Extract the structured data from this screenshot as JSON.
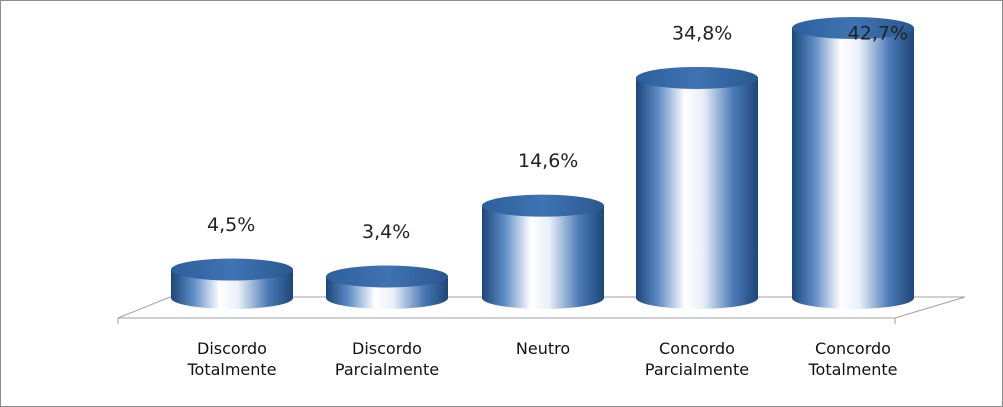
{
  "chart_data": {
    "type": "bar3d",
    "categories": [
      "Discordo Totalmente",
      "Discordo Parcialmente",
      "Neutro",
      "Concordo Parcialmente",
      "Concordo Totalmente"
    ],
    "values": [
      4.5,
      3.4,
      14.6,
      34.8,
      42.7
    ],
    "value_labels": [
      "4,5%",
      "3,4%",
      "14,6%",
      "34,8%",
      "42,7%"
    ],
    "color": "#2e5f9e"
  }
}
